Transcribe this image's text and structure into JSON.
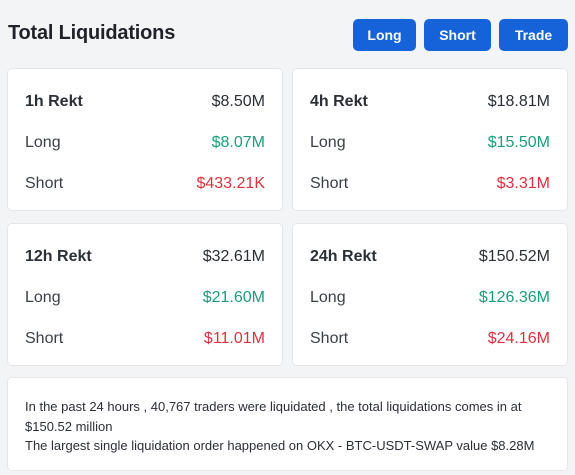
{
  "header": {
    "title": "Total Liquidations",
    "buttons": {
      "long": "Long",
      "short": "Short",
      "trade": "Trade"
    }
  },
  "colors": {
    "accent": "#1662d8",
    "positive": "#1a9e7c",
    "negative": "#e0303e"
  },
  "cards": [
    {
      "label": "1h Rekt",
      "total": "$8.50M",
      "long_label": "Long",
      "long": "$8.07M",
      "short_label": "Short",
      "short": "$433.21K"
    },
    {
      "label": "4h Rekt",
      "total": "$18.81M",
      "long_label": "Long",
      "long": "$15.50M",
      "short_label": "Short",
      "short": "$3.31M"
    },
    {
      "label": "12h Rekt",
      "total": "$32.61M",
      "long_label": "Long",
      "long": "$21.60M",
      "short_label": "Short",
      "short": "$11.01M"
    },
    {
      "label": "24h Rekt",
      "total": "$150.52M",
      "long_label": "Long",
      "long": "$126.36M",
      "short_label": "Short",
      "short": "$24.16M"
    }
  ],
  "summary": {
    "line1": "In the past 24 hours , 40,767 traders were liquidated , the total liquidations comes in at $150.52 million",
    "line2": "The largest single liquidation order happened on OKX - BTC-USDT-SWAP value $8.28M"
  }
}
